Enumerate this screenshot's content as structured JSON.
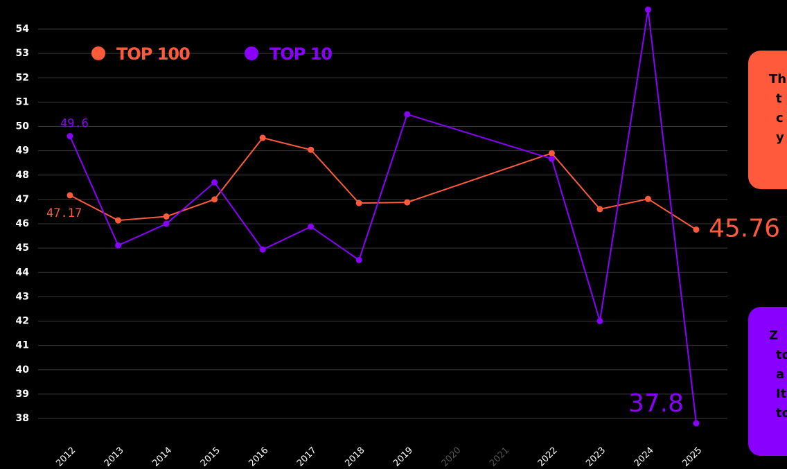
{
  "chart_data": {
    "type": "line",
    "x": [
      2012,
      2013,
      2014,
      2015,
      2016,
      2017,
      2018,
      2019,
      2022,
      2023,
      2024,
      2025
    ],
    "xlim": [
      2012,
      2025
    ],
    "xticks": [
      2012,
      2013,
      2014,
      2015,
      2016,
      2017,
      2018,
      2019,
      2020,
      2021,
      2022,
      2023,
      2024,
      2025
    ],
    "ylim": [
      38,
      54
    ],
    "yticks": [
      38,
      39,
      40,
      41,
      42,
      43,
      44,
      45,
      46,
      47,
      48,
      49,
      50,
      51,
      52,
      53,
      54
    ],
    "grid": true,
    "series": [
      {
        "name": "TOP 100",
        "color": "#ff5a3c",
        "values": [
          47.17,
          46.14,
          46.3,
          47.0,
          49.53,
          49.04,
          46.85,
          46.88,
          48.9,
          46.6,
          47.02,
          45.76
        ]
      },
      {
        "name": "TOP 10",
        "color": "#8a00ff",
        "values": [
          49.6,
          45.11,
          46.0,
          47.7,
          44.94,
          45.88,
          44.51,
          50.5,
          48.67,
          42.0,
          54.8,
          37.8
        ]
      }
    ],
    "annotations": [
      {
        "lines": [
          "Th",
          "t",
          "c",
          "y"
        ],
        "color": "#ff5a3c"
      },
      {
        "lines": [
          "Z",
          "top",
          "a",
          "It",
          "to"
        ],
        "color": "#8a00ff"
      }
    ]
  }
}
